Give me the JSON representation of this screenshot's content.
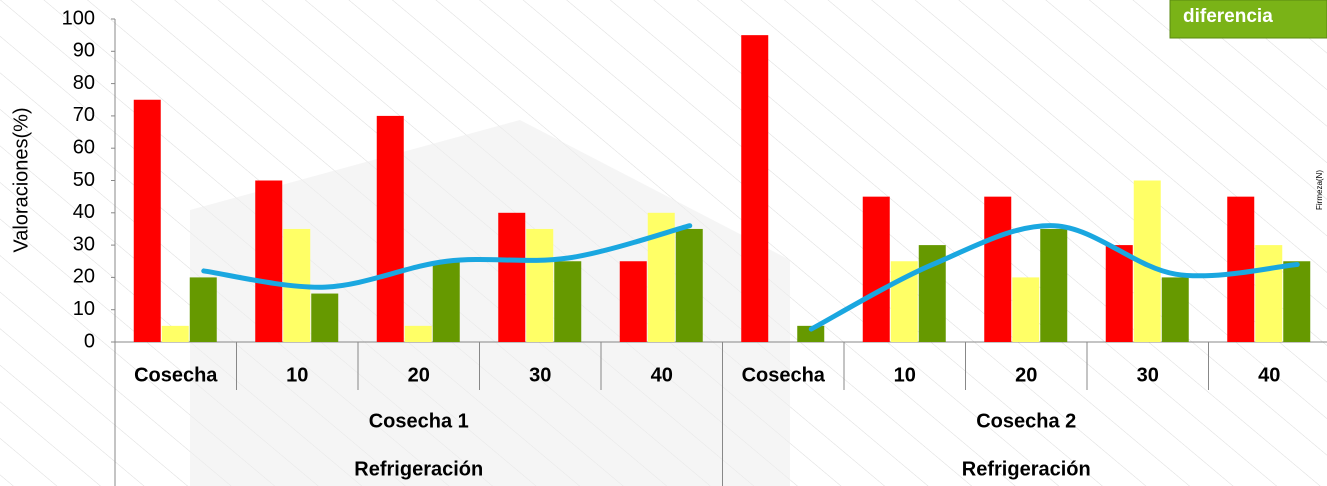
{
  "chart_data": {
    "type": "bar",
    "ylabel": "Valoraciones(%)",
    "y2label": "Firmeza(N)",
    "badge": "diferencia",
    "ylim": [
      0,
      100
    ],
    "yticks": [
      0,
      10,
      20,
      30,
      40,
      50,
      60,
      70,
      80,
      90,
      100
    ],
    "groups": [
      {
        "name": "Cosecha 1",
        "level2": "Refrigeración",
        "categories": [
          "Cosecha",
          "10",
          "20",
          "30",
          "40"
        ]
      },
      {
        "name": "Cosecha 2",
        "level2": "Refrigeración",
        "categories": [
          "Cosecha",
          "10",
          "20",
          "30",
          "40"
        ]
      }
    ],
    "series": [
      {
        "color": "#ff0000",
        "values": [
          75,
          50,
          70,
          40,
          25,
          95,
          45,
          45,
          30,
          45
        ]
      },
      {
        "color": "#ffff66",
        "values": [
          5,
          35,
          5,
          35,
          40,
          0,
          25,
          20,
          50,
          30
        ]
      },
      {
        "color": "#669900",
        "values": [
          20,
          15,
          25,
          25,
          35,
          5,
          30,
          35,
          20,
          25
        ]
      }
    ],
    "line": {
      "color": "#1aa7e0",
      "values": [
        22,
        17,
        25,
        26,
        36,
        4,
        24,
        36,
        21,
        24
      ]
    }
  }
}
